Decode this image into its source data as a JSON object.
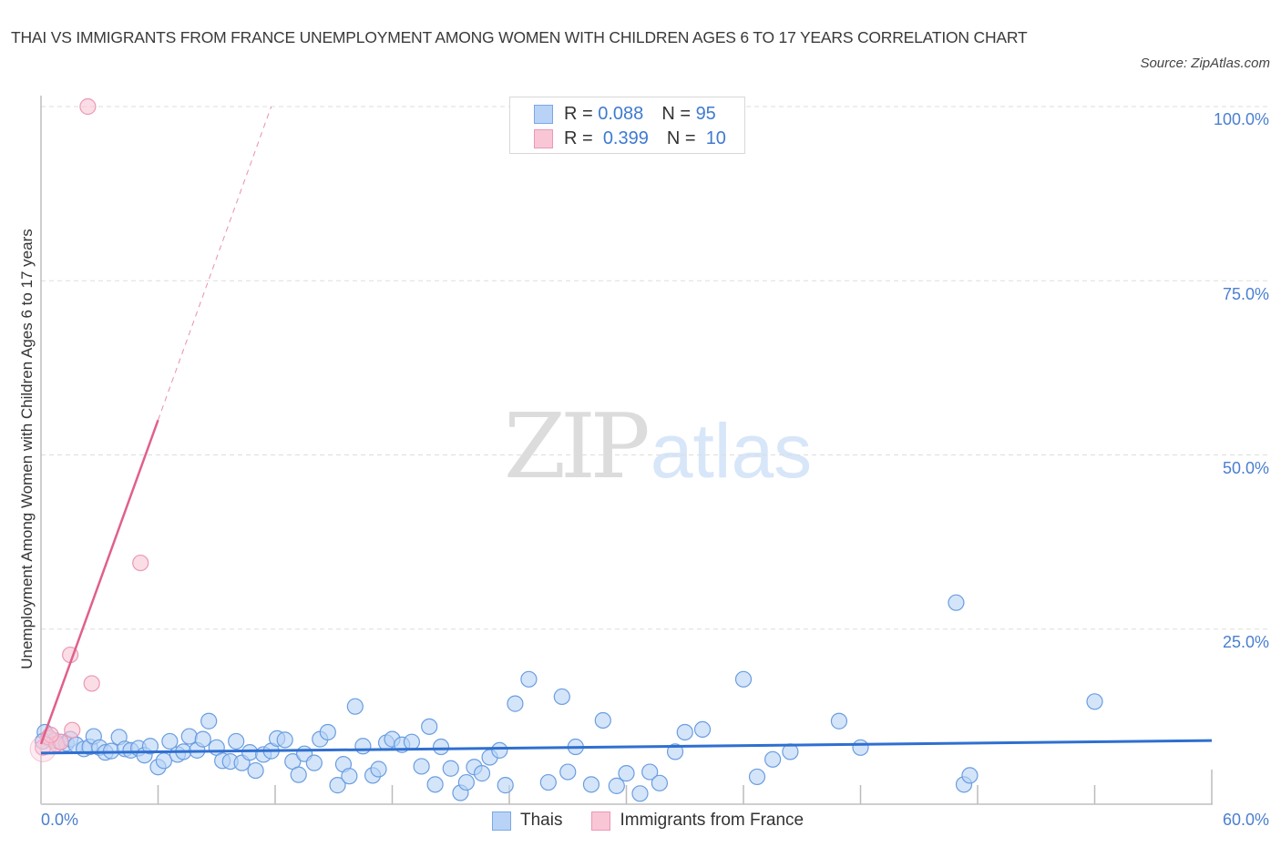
{
  "header": {
    "title": "THAI VS IMMIGRANTS FROM FRANCE UNEMPLOYMENT AMONG WOMEN WITH CHILDREN AGES 6 TO 17 YEARS CORRELATION CHART",
    "source": "Source: ZipAtlas.com"
  },
  "legend": {
    "rows": [
      {
        "r_label": "R =",
        "r_value": "0.088",
        "n_label": "N =",
        "n_value": "95"
      },
      {
        "r_label": "R =",
        "r_value": "0.399",
        "n_label": "N =",
        "n_value": "10"
      }
    ],
    "bottom": [
      "Thais",
      "Immigrants from France"
    ]
  },
  "watermark": {
    "zip": "ZIP",
    "atlas": "atlas"
  },
  "colors": {
    "thais_fill": "#b8d3f6",
    "thais_stroke": "#6a9de0",
    "thais_line": "#2f6fd0",
    "france_fill": "#f9c6d6",
    "france_stroke": "#eb98b4",
    "france_line": "#e0608a",
    "tick_label": "#4a7fd1"
  },
  "chart_data": {
    "type": "scatter",
    "title": "THAI VS IMMIGRANTS FROM FRANCE UNEMPLOYMENT AMONG WOMEN WITH CHILDREN AGES 6 TO 17 YEARS CORRELATION CHART",
    "xlabel": "",
    "ylabel": "Unemployment Among Women with Children Ages 6 to 17 years",
    "xlim": [
      0,
      60
    ],
    "ylim": [
      0,
      100
    ],
    "x_tick_labels": [
      "0.0%",
      "60.0%"
    ],
    "y_tick_labels": [
      "100.0%",
      "75.0%",
      "50.0%",
      "25.0%"
    ],
    "y_ticks": [
      100,
      75,
      50,
      25
    ],
    "grid": {
      "horizontal_dashed": true
    },
    "legend_position": "top-center and bottom-center",
    "series": [
      {
        "name": "Thais",
        "R": 0.088,
        "N": 95,
        "trendline": {
          "x": [
            0,
            60
          ],
          "y": [
            7.2,
            9.0
          ],
          "style": "solid"
        },
        "points": [
          [
            0.2,
            10.2
          ],
          [
            0.4,
            9.3
          ],
          [
            0.7,
            9.0
          ],
          [
            1.0,
            8.8
          ],
          [
            1.3,
            8.6
          ],
          [
            1.5,
            9.2
          ],
          [
            1.8,
            8.4
          ],
          [
            2.2,
            7.8
          ],
          [
            2.5,
            8.1
          ],
          [
            2.7,
            9.6
          ],
          [
            3.0,
            8.0
          ],
          [
            3.3,
            7.3
          ],
          [
            3.6,
            7.5
          ],
          [
            4.0,
            9.5
          ],
          [
            4.3,
            7.8
          ],
          [
            4.6,
            7.6
          ],
          [
            5.0,
            7.9
          ],
          [
            5.3,
            6.9
          ],
          [
            5.6,
            8.2
          ],
          [
            6.0,
            5.2
          ],
          [
            6.3,
            6.1
          ],
          [
            6.6,
            8.9
          ],
          [
            7.0,
            7.0
          ],
          [
            7.3,
            7.4
          ],
          [
            7.6,
            9.6
          ],
          [
            8.0,
            7.6
          ],
          [
            8.3,
            9.2
          ],
          [
            8.6,
            11.8
          ],
          [
            9.0,
            8.0
          ],
          [
            9.3,
            6.1
          ],
          [
            9.7,
            6.0
          ],
          [
            10.0,
            8.9
          ],
          [
            10.3,
            5.8
          ],
          [
            10.7,
            7.3
          ],
          [
            11.0,
            4.7
          ],
          [
            11.4,
            7.0
          ],
          [
            11.8,
            7.5
          ],
          [
            12.1,
            9.3
          ],
          [
            12.5,
            9.1
          ],
          [
            12.9,
            6.0
          ],
          [
            13.2,
            4.1
          ],
          [
            13.5,
            7.1
          ],
          [
            14.0,
            5.8
          ],
          [
            14.3,
            9.2
          ],
          [
            14.7,
            10.2
          ],
          [
            15.2,
            2.6
          ],
          [
            15.5,
            5.6
          ],
          [
            15.8,
            3.9
          ],
          [
            16.1,
            13.9
          ],
          [
            16.5,
            8.2
          ],
          [
            17.0,
            4.0
          ],
          [
            17.3,
            4.9
          ],
          [
            17.7,
            8.7
          ],
          [
            18.0,
            9.2
          ],
          [
            18.5,
            8.4
          ],
          [
            19.0,
            8.8
          ],
          [
            19.5,
            5.3
          ],
          [
            19.9,
            11.0
          ],
          [
            20.2,
            2.7
          ],
          [
            20.5,
            8.1
          ],
          [
            21.0,
            5.0
          ],
          [
            21.5,
            1.5
          ],
          [
            21.8,
            3.0
          ],
          [
            22.2,
            5.2
          ],
          [
            22.6,
            4.3
          ],
          [
            23.0,
            6.6
          ],
          [
            23.5,
            7.6
          ],
          [
            23.8,
            2.6
          ],
          [
            24.3,
            14.3
          ],
          [
            25.0,
            17.8
          ],
          [
            26.0,
            3.0
          ],
          [
            26.7,
            15.3
          ],
          [
            27.0,
            4.5
          ],
          [
            27.4,
            8.1
          ],
          [
            28.2,
            2.7
          ],
          [
            28.8,
            11.9
          ],
          [
            29.5,
            2.5
          ],
          [
            30.0,
            4.3
          ],
          [
            30.7,
            1.4
          ],
          [
            31.2,
            4.5
          ],
          [
            31.7,
            2.9
          ],
          [
            32.5,
            7.4
          ],
          [
            33.0,
            10.2
          ],
          [
            33.9,
            10.6
          ],
          [
            36.0,
            17.8
          ],
          [
            36.7,
            3.8
          ],
          [
            37.5,
            6.3
          ],
          [
            38.4,
            7.4
          ],
          [
            40.9,
            11.8
          ],
          [
            42.0,
            8.0
          ],
          [
            46.9,
            28.8
          ],
          [
            47.3,
            2.7
          ],
          [
            47.6,
            4.0
          ],
          [
            54.0,
            14.6
          ],
          [
            0.1,
            8.9
          ]
        ]
      },
      {
        "name": "Immigrants from France",
        "R": 0.399,
        "N": 10,
        "trendline": {
          "x": [
            0,
            6.0,
            11.8
          ],
          "y": [
            8.5,
            55.0,
            100.0
          ],
          "style": "solid to x=6, dashed beyond"
        },
        "points": [
          [
            0.1,
            8.0
          ],
          [
            0.4,
            9.5
          ],
          [
            0.8,
            8.5
          ],
          [
            1.0,
            8.8
          ],
          [
            1.6,
            10.5
          ],
          [
            1.5,
            21.3
          ],
          [
            2.6,
            17.2
          ],
          [
            5.1,
            34.5
          ],
          [
            2.4,
            100.0
          ],
          [
            0.5,
            9.8
          ]
        ]
      }
    ]
  }
}
